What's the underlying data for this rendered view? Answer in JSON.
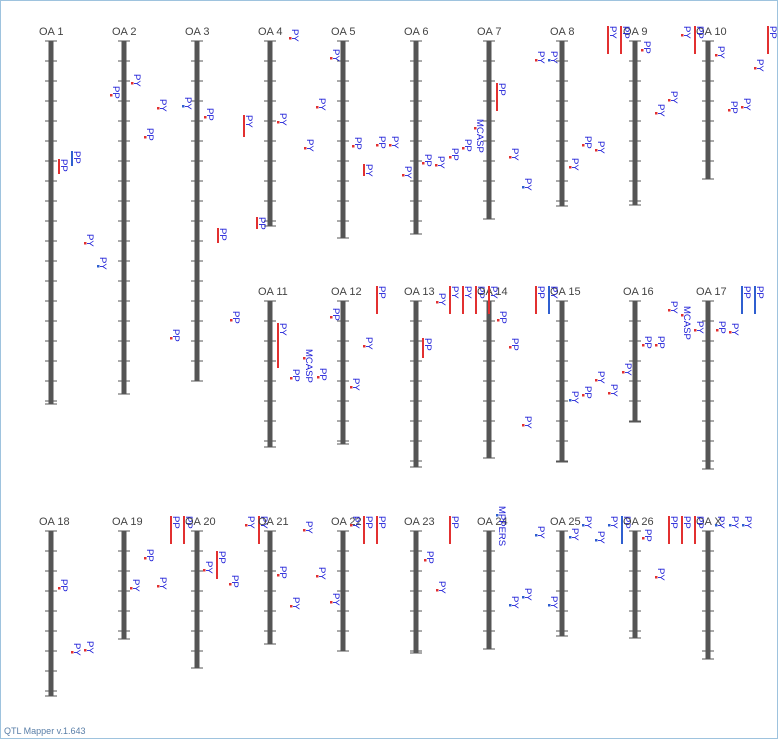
{
  "chromosomes": [
    {
      "name": "OA 1",
      "qtls": [
        "PP",
        "PP",
        "PY",
        "PY"
      ]
    },
    {
      "name": "OA 2",
      "qtls": [
        "PP",
        "PY",
        "PP",
        "PY"
      ]
    },
    {
      "name": "OA 3",
      "qtls": [
        "PY",
        "PP",
        "PP",
        "PP",
        "PP"
      ]
    },
    {
      "name": "OA 4",
      "qtls": [
        "PY",
        "PY",
        "PY",
        "PY",
        "PY",
        "PP"
      ]
    },
    {
      "name": "OA 5",
      "qtls": [
        "PY",
        "PP",
        "PY",
        "PP",
        "PY",
        "PY"
      ]
    },
    {
      "name": "OA 6",
      "qtls": [
        "PP",
        "PY",
        "PP",
        "PP",
        "MCASP"
      ]
    },
    {
      "name": "OA 7",
      "qtls": [
        "PP",
        "PY",
        "PY"
      ]
    },
    {
      "name": "OA 8",
      "qtls": [
        "PY",
        "PY",
        "PY",
        "PP",
        "PY"
      ]
    },
    {
      "name": "OA 9",
      "qtls": [
        "PY",
        "PP",
        "PP",
        "PY",
        "PY"
      ]
    },
    {
      "name": "OA 10",
      "qtls": [
        "PY",
        "PP",
        "PY",
        "PP",
        "PY",
        "PY",
        "PP"
      ]
    },
    {
      "name": "OA 11",
      "qtls": [
        "PY",
        "PP",
        "MCASP",
        "PP",
        "PP"
      ]
    },
    {
      "name": "OA 12",
      "qtls": [
        "PY",
        "PP",
        "PY"
      ]
    },
    {
      "name": "OA 13",
      "qtls": [
        "PP",
        "PY",
        "PY",
        "PY",
        "PP"
      ]
    },
    {
      "name": "OA 14",
      "qtls": [
        "PY",
        "PP",
        "PP",
        "PY"
      ]
    },
    {
      "name": "OA 15",
      "qtls": [
        "PP",
        "PY",
        "PY",
        "PP",
        "PY",
        "PY",
        "PY"
      ]
    },
    {
      "name": "OA 16",
      "qtls": [
        "PP",
        "PP",
        "PY",
        "MCASP",
        "PY"
      ]
    },
    {
      "name": "OA 17",
      "qtls": [
        "PP",
        "PY",
        "PP",
        "PP"
      ]
    },
    {
      "name": "OA 18",
      "qtls": [
        "PP",
        "PY",
        "PY"
      ]
    },
    {
      "name": "OA 19",
      "qtls": [
        "PY",
        "PP",
        "PY",
        "PP",
        "PP"
      ]
    },
    {
      "name": "OA 20",
      "qtls": [
        "PY",
        "PP",
        "PP",
        "PY",
        "PY"
      ]
    },
    {
      "name": "OA 21",
      "qtls": [
        "PP",
        "PY",
        "PY",
        "PY",
        "PY"
      ]
    },
    {
      "name": "OA 22",
      "qtls": [
        "PY",
        "PP",
        "PP"
      ]
    },
    {
      "name": "OA 23",
      "qtls": [
        "PP",
        "PY",
        "PP"
      ]
    },
    {
      "name": "OA 24",
      "qtls": [
        "MPPERS",
        "PY",
        "PY",
        "PY"
      ]
    },
    {
      "name": "OA 25",
      "qtls": [
        "PY",
        "PY",
        "PY",
        "PY",
        "PY",
        "PP"
      ]
    },
    {
      "name": "OA 26",
      "qtls": [
        "PP",
        "PY",
        "PP",
        "PP"
      ]
    },
    {
      "name": "OA X",
      "qtls": [
        "PP",
        "PY",
        "PY",
        "PY"
      ]
    }
  ],
  "footer": "QTL Mapper v.1.643"
}
